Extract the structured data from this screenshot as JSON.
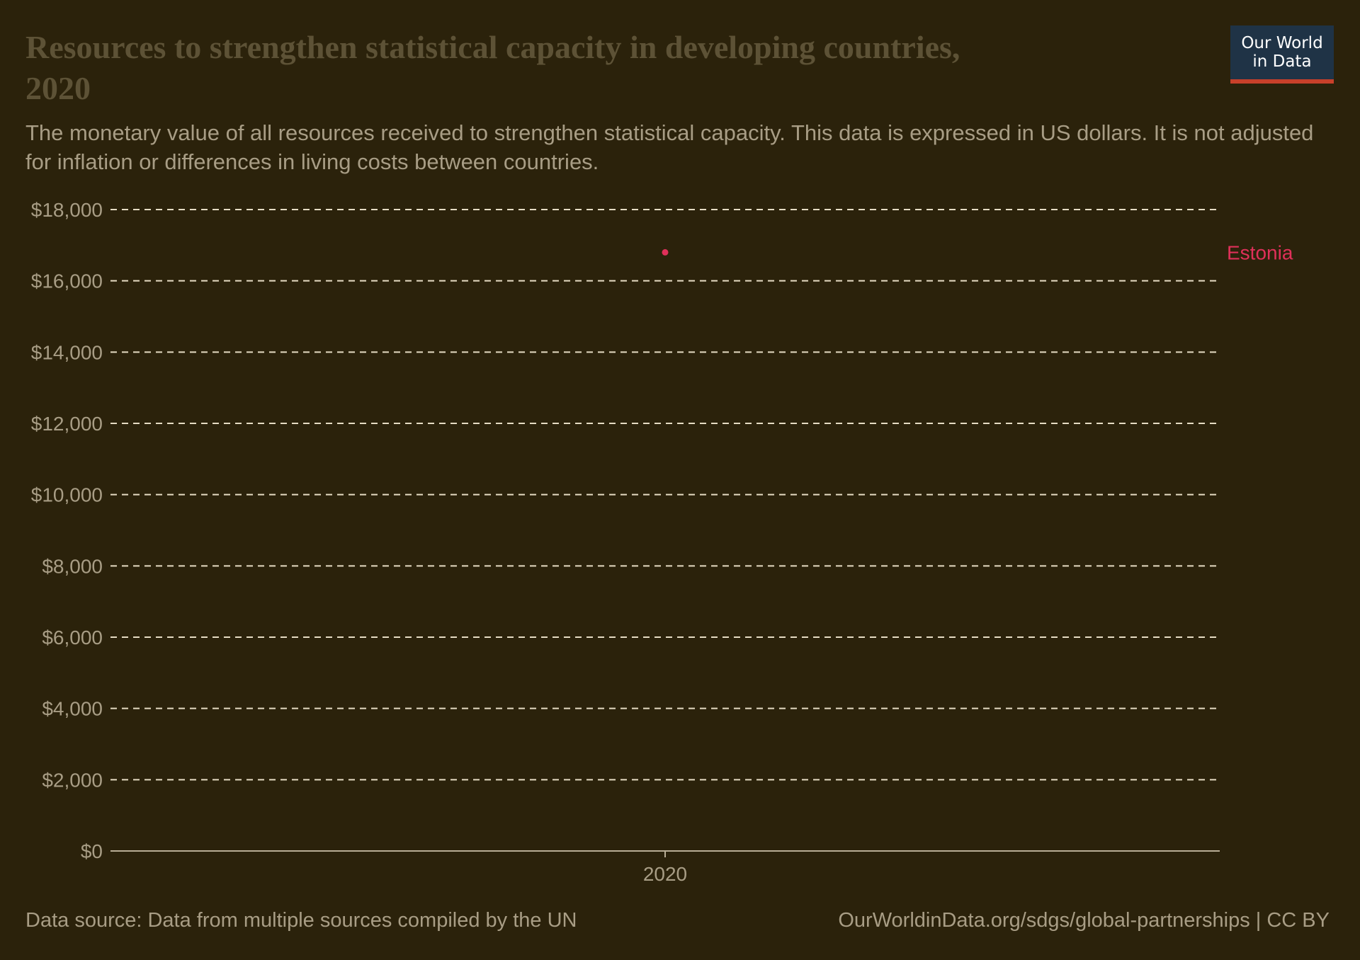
{
  "header": {
    "title": "Resources to strengthen statistical capacity in developing countries, 2020",
    "subtitle": "The monetary value of all resources received to strengthen statistical capacity. This data is expressed in US dollars. It is not adjusted for inflation or differences in living costs between countries."
  },
  "logo": {
    "line1": "Our World",
    "line2": "in Data"
  },
  "footer": {
    "source": "Data source: Data from multiple sources compiled by the UN",
    "link": "OurWorldinData.org/sdgs/global-partnerships | CC BY"
  },
  "chart_data": {
    "type": "scatter",
    "title": "Resources to strengthen statistical capacity in developing countries, 2020",
    "xlabel": "",
    "ylabel": "",
    "x_ticks": [
      "2020"
    ],
    "y_ticks": [
      "$0",
      "$2,000",
      "$4,000",
      "$6,000",
      "$8,000",
      "$10,000",
      "$12,000",
      "$14,000",
      "$16,000",
      "$18,000"
    ],
    "ylim": [
      0,
      18000
    ],
    "grid": true,
    "series": [
      {
        "name": "Estonia",
        "color": "#e0305a",
        "points": [
          {
            "x": "2020",
            "y": 16800
          }
        ]
      }
    ]
  }
}
